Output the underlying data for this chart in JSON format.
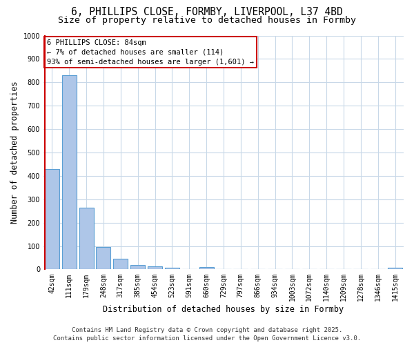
{
  "title_line1": "6, PHILLIPS CLOSE, FORMBY, LIVERPOOL, L37 4BD",
  "title_line2": "Size of property relative to detached houses in Formby",
  "xlabel": "Distribution of detached houses by size in Formby",
  "ylabel": "Number of detached properties",
  "categories": [
    "42sqm",
    "111sqm",
    "179sqm",
    "248sqm",
    "317sqm",
    "385sqm",
    "454sqm",
    "523sqm",
    "591sqm",
    "660sqm",
    "729sqm",
    "797sqm",
    "866sqm",
    "934sqm",
    "1003sqm",
    "1072sqm",
    "1140sqm",
    "1209sqm",
    "1278sqm",
    "1346sqm",
    "1415sqm"
  ],
  "values": [
    430,
    830,
    265,
    95,
    45,
    20,
    12,
    8,
    0,
    10,
    0,
    0,
    0,
    0,
    0,
    0,
    0,
    0,
    0,
    0,
    8
  ],
  "bar_color": "#aec6e8",
  "bar_edge_color": "#5a9fd4",
  "marker_color": "#cc0000",
  "ylim": [
    0,
    1000
  ],
  "yticks": [
    0,
    100,
    200,
    300,
    400,
    500,
    600,
    700,
    800,
    900,
    1000
  ],
  "annotation_title": "6 PHILLIPS CLOSE: 84sqm",
  "annotation_line2": "← 7% of detached houses are smaller (114)",
  "annotation_line3": "93% of semi-detached houses are larger (1,601) →",
  "annotation_box_color": "#ffffff",
  "annotation_box_edge": "#cc0000",
  "footer_line1": "Contains HM Land Registry data © Crown copyright and database right 2025.",
  "footer_line2": "Contains public sector information licensed under the Open Government Licence v3.0.",
  "background_color": "#ffffff",
  "grid_color": "#c8d8e8",
  "title_fontsize": 10.5,
  "subtitle_fontsize": 9.5,
  "tick_fontsize": 7,
  "xlabel_fontsize": 8.5,
  "ylabel_fontsize": 8.5,
  "annotation_fontsize": 7.5,
  "footer_fontsize": 6.5
}
